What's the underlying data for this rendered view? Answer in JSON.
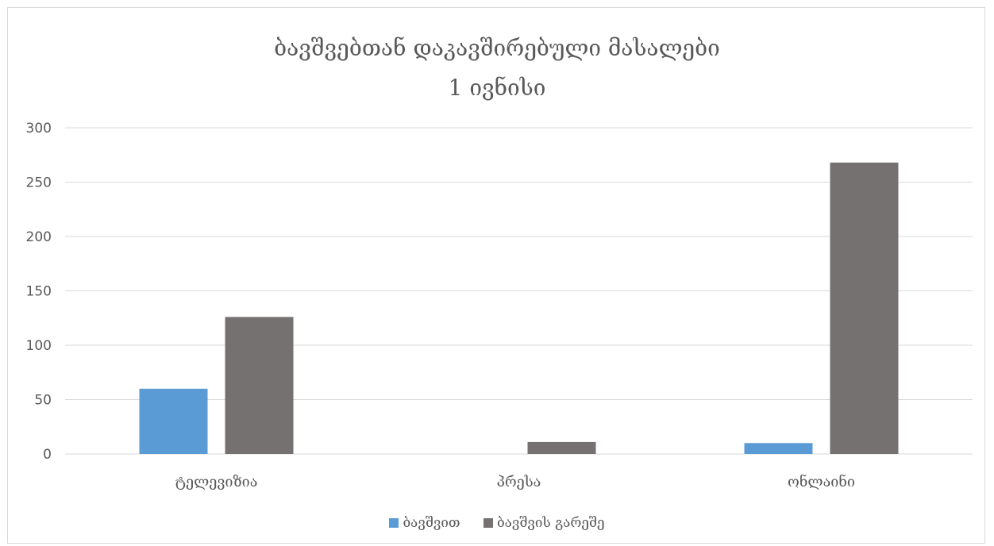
{
  "chart_data": {
    "type": "bar",
    "title": "ბავშვებთან დაკავშირებული მასალები",
    "subtitle": "1 ივნისი",
    "categories": [
      "ტელევიზია",
      "პრესა",
      "ონლაინი"
    ],
    "series": [
      {
        "name": "ბავშვით",
        "values": [
          60,
          0,
          10
        ],
        "color": "#5b9bd5"
      },
      {
        "name": "ბავშვის გარეშე",
        "values": [
          126,
          11,
          268
        ],
        "color": "#767171"
      }
    ],
    "ylim": [
      0,
      300
    ],
    "yticks": [
      0,
      50,
      100,
      150,
      200,
      250,
      300
    ],
    "grid": true,
    "legend_position": "bottom",
    "xlabel": "",
    "ylabel": ""
  }
}
